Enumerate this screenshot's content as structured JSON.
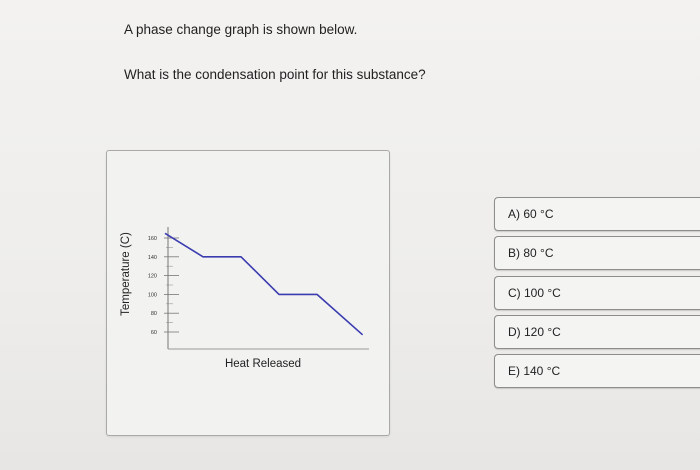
{
  "question": {
    "prompt": "A phase change graph is shown below.",
    "text": "What is the condensation point for this substance?"
  },
  "chart_data": {
    "type": "line",
    "xlabel": "Heat Released",
    "ylabel": "Temperature (C)",
    "ylim": [
      60,
      160
    ],
    "yticks": [
      160,
      140,
      120,
      100,
      80,
      60
    ],
    "ytick_labels": [
      "160",
      "140",
      "120",
      "100",
      "80",
      "60"
    ],
    "series": [
      {
        "color": "#3b3cb0",
        "x": [
          0,
          1.0,
          2.0,
          3.0,
          4.0,
          5.2
        ],
        "y": [
          165,
          140,
          140,
          100,
          100,
          57
        ]
      }
    ]
  },
  "choices": [
    {
      "label": "A) 60 °C"
    },
    {
      "label": "B) 80 °C"
    },
    {
      "label": "C) 100 °C"
    },
    {
      "label": "D) 120 °C"
    },
    {
      "label": "E) 140 °C"
    }
  ]
}
